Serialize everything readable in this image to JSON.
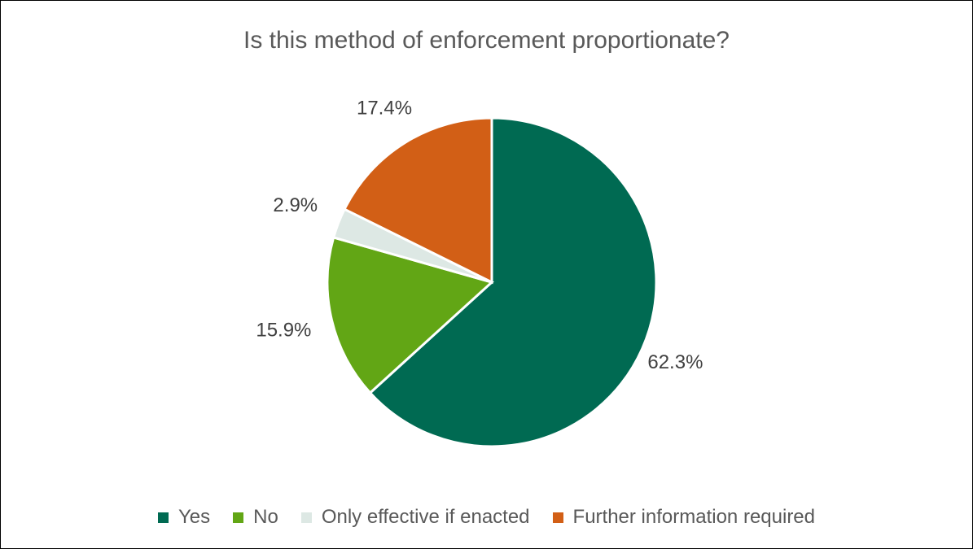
{
  "chart_data": {
    "type": "pie",
    "title": "Is this method of enforcement proportionate?",
    "categories": [
      "Yes",
      "No",
      "Only effective if enacted",
      "Further information required"
    ],
    "values": [
      62.3,
      15.9,
      2.9,
      17.4
    ],
    "labels": [
      "62.3%",
      "15.9%",
      "2.9%",
      "17.4%"
    ],
    "colors": [
      "#006A52",
      "#62A615",
      "#DDE8E4",
      "#D25F16"
    ],
    "start_angle": "12 o'clock, clockwise",
    "legend_position": "bottom"
  }
}
